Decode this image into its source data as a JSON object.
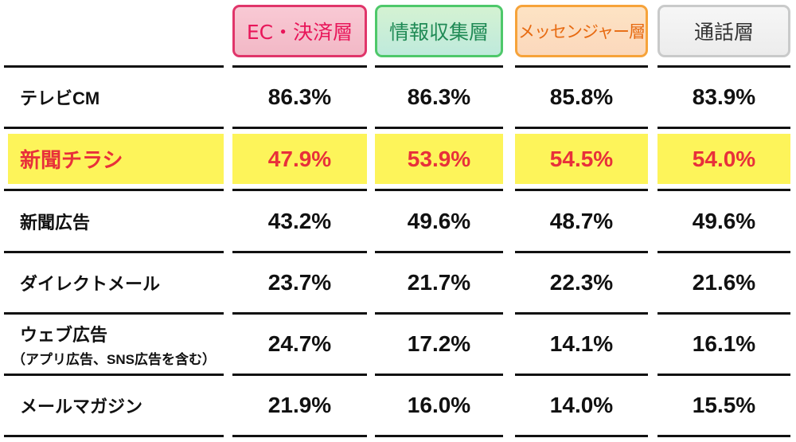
{
  "columns": [
    {
      "label": "EC・決済層",
      "color": "#e8165a"
    },
    {
      "label": "情報収集層",
      "color": "#1f8a55"
    },
    {
      "label": "メッセンジャー層",
      "color": "#e76a10"
    },
    {
      "label": "通話層",
      "color": "#333333"
    }
  ],
  "rows": [
    {
      "label": "テレビCM",
      "sub": "",
      "values": [
        "86.3%",
        "86.3%",
        "85.8%",
        "83.9%"
      ]
    },
    {
      "label": "新聞チラシ",
      "sub": "",
      "values": [
        "47.9%",
        "53.9%",
        "54.5%",
        "54.0%"
      ],
      "highlight": true
    },
    {
      "label": "新聞広告",
      "sub": "",
      "values": [
        "43.2%",
        "49.6%",
        "48.7%",
        "49.6%"
      ]
    },
    {
      "label": "ダイレクトメール",
      "sub": "",
      "values": [
        "23.7%",
        "21.7%",
        "22.3%",
        "21.6%"
      ]
    },
    {
      "label": "ウェブ広告",
      "sub": "（アプリ広告、SNS広告を含む）",
      "values": [
        "24.7%",
        "17.2%",
        "14.1%",
        "16.1%"
      ]
    },
    {
      "label": "メールマガジン",
      "sub": "",
      "values": [
        "21.9%",
        "16.0%",
        "14.0%",
        "15.5%"
      ]
    }
  ],
  "highlight_colors": {
    "background": "#fdf45a",
    "text": "#e8303a"
  },
  "chart_data": {
    "type": "table",
    "title": "",
    "categories": [
      "テレビCM",
      "新聞チラシ",
      "新聞広告",
      "ダイレクトメール",
      "ウェブ広告（アプリ広告、SNS広告を含む）",
      "メールマガジン"
    ],
    "series": [
      {
        "name": "EC・決済層",
        "values": [
          86.3,
          47.9,
          43.2,
          23.7,
          24.7,
          21.9
        ]
      },
      {
        "name": "情報収集層",
        "values": [
          86.3,
          53.9,
          49.6,
          21.7,
          17.2,
          16.0
        ]
      },
      {
        "name": "メッセンジャー層",
        "values": [
          85.8,
          54.5,
          48.7,
          22.3,
          14.1,
          14.0
        ]
      },
      {
        "name": "通話層",
        "values": [
          83.9,
          54.0,
          49.6,
          21.6,
          16.1,
          15.5
        ]
      }
    ],
    "unit": "%",
    "highlighted_row": "新聞チラシ"
  }
}
